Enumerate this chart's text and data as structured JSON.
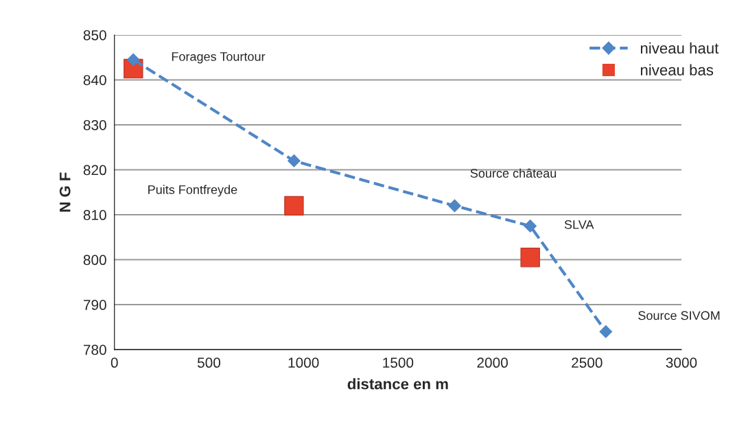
{
  "chart_data": {
    "type": "line",
    "xlabel": "distance en m",
    "ylabel": "N G F",
    "xlim": [
      0,
      3000
    ],
    "xticks": [
      0,
      500,
      1000,
      1500,
      2000,
      2500,
      3000
    ],
    "ylim": [
      780,
      850
    ],
    "yticks": [
      780,
      790,
      800,
      810,
      820,
      830,
      840,
      850
    ],
    "grid": "y",
    "legend": "top right",
    "series": [
      {
        "name": "niveau haut",
        "color": "#4f86c6",
        "marker": "diamond",
        "line_style": "dashed",
        "x": [
          100,
          950,
          1800,
          2200,
          2600
        ],
        "values": [
          844.5,
          822,
          812,
          807.5,
          784
        ]
      },
      {
        "name": "niveau bas",
        "type": "scatter",
        "color": "#e8412c",
        "marker": "square",
        "x": [
          100,
          950,
          2200
        ],
        "values": [
          842.5,
          812,
          800.5
        ]
      }
    ],
    "annotations": [
      "Forages Tourtour",
      "Puits Fontfreyde",
      "Source château",
      "SLVA",
      "Source SIVOM"
    ]
  }
}
